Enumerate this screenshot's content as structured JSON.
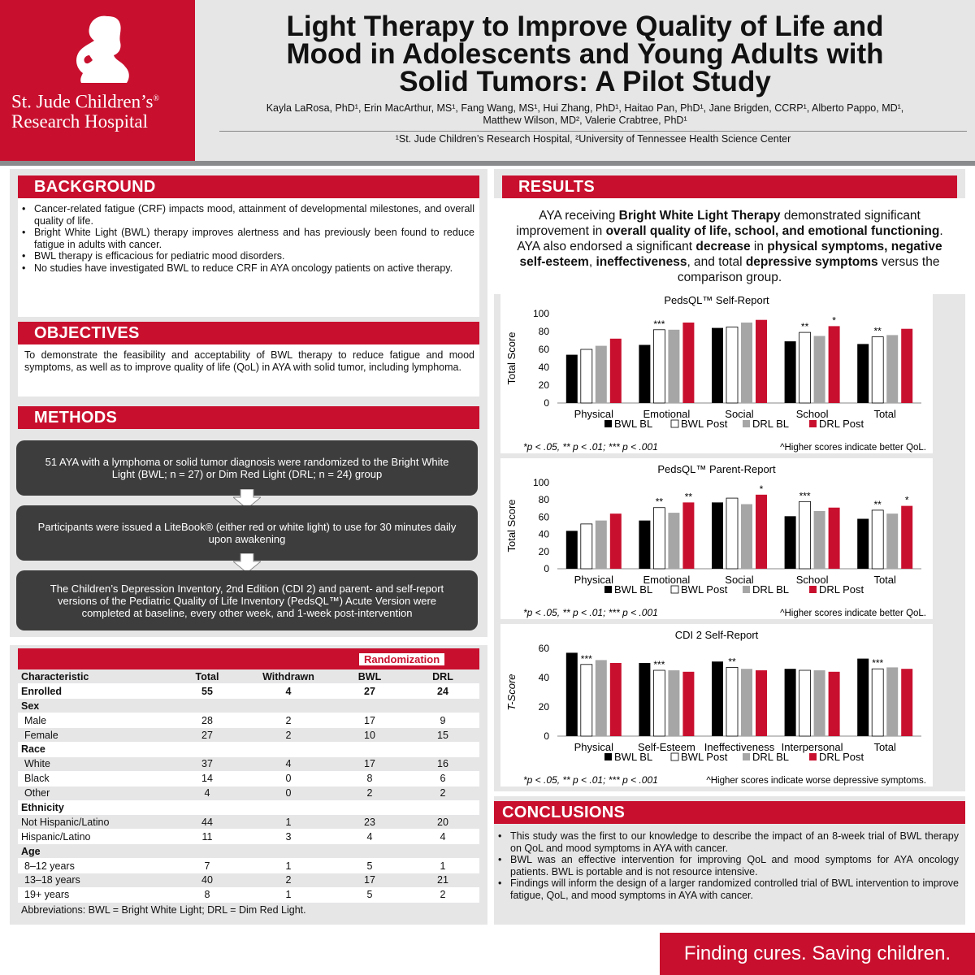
{
  "header": {
    "logo_line1": "St. Jude Children’s",
    "logo_line2": "Research Hospital",
    "logo_mark": "®",
    "title_line1": "Light Therapy to Improve Quality of Life and",
    "title_line2": "Mood in Adolescents and Young Adults with",
    "title_line3": "Solid Tumors:  A Pilot Study",
    "authors_line1": "Kayla LaRosa, PhD¹, Erin MacArthur, MS¹, Fang Wang, MS¹, Hui Zhang, PhD¹, Haitao Pan, PhD¹, Jane Brigden, CCRP¹, Alberto Pappo, MD¹,",
    "authors_line2": "Matthew Wilson, MD², Valerie Crabtree, PhD¹",
    "affiliations": "¹St. Jude Children’s Research Hospital, ²University of Tennessee Health Science Center"
  },
  "background": {
    "heading": "BACKGROUND",
    "bullets": [
      "Cancer-related fatigue (CRF) impacts mood, attainment of developmental milestones, and overall quality of life.",
      "Bright White Light (BWL) therapy improves alertness and has previously been found to reduce fatigue in adults with cancer.",
      "BWL therapy is efficacious for pediatric mood disorders.",
      "No studies have investigated BWL to reduce CRF in AYA oncology patients on active therapy."
    ]
  },
  "objectives": {
    "heading": "OBJECTIVES",
    "text": "To demonstrate the feasibility and acceptability of BWL therapy to reduce fatigue and mood symptoms, as well as to improve quality of life (QoL) in AYA with solid tumor, including lymphoma."
  },
  "methods": {
    "heading": "METHODS",
    "steps": [
      "51 AYA with a lymphoma or solid tumor diagnosis were randomized to the Bright White Light (BWL; n = 27) or Dim Red Light (DRL; n = 24) group",
      "Participants were issued a LiteBook® (either red or white light) to use for 30 minutes daily upon awakening",
      "The Children’s Depression Inventory, 2nd Edition (CDI 2) and parent- and self-report versions of the Pediatric Quality of Life Inventory (PedsQL™) Acute Version were completed at baseline, every other week, and 1-week post-intervention"
    ]
  },
  "demographics": {
    "group_header": "Randomization",
    "columns": [
      "Characteristic",
      "Total",
      "Withdrawn",
      "BWL",
      "DRL"
    ],
    "rows": [
      {
        "label": "Enrolled",
        "bold": true,
        "vals": [
          "55",
          "4",
          "27",
          "24"
        ]
      },
      {
        "label": "Sex",
        "bold": true,
        "vals": [
          "",
          "",
          "",
          ""
        ]
      },
      {
        "label": "Male",
        "indent": true,
        "vals": [
          "28",
          "2",
          "17",
          "9"
        ]
      },
      {
        "label": "Female",
        "indent": true,
        "vals": [
          "27",
          "2",
          "10",
          "15"
        ]
      },
      {
        "label": "Race",
        "bold": true,
        "vals": [
          "",
          "",
          "",
          ""
        ]
      },
      {
        "label": "White",
        "indent": true,
        "vals": [
          "37",
          "4",
          "17",
          "16"
        ]
      },
      {
        "label": "Black",
        "indent": true,
        "vals": [
          "14",
          "0",
          "8",
          "6"
        ]
      },
      {
        "label": "Other",
        "indent": true,
        "vals": [
          "4",
          "0",
          "2",
          "2"
        ]
      },
      {
        "label": "Ethnicity",
        "bold": true,
        "vals": [
          "",
          "",
          "",
          ""
        ]
      },
      {
        "label": "Not Hispanic/Latino",
        "vals": [
          "44",
          "1",
          "23",
          "20"
        ]
      },
      {
        "label": "Hispanic/Latino",
        "vals": [
          "11",
          "3",
          "4",
          "4"
        ]
      },
      {
        "label": "Age",
        "bold": true,
        "vals": [
          "",
          "",
          "",
          ""
        ]
      },
      {
        "label": "8–12 years",
        "indent": true,
        "vals": [
          "7",
          "1",
          "5",
          "1"
        ]
      },
      {
        "label": "13–18 years",
        "indent": true,
        "vals": [
          "40",
          "2",
          "17",
          "21"
        ]
      },
      {
        "label": "19+ years",
        "indent": true,
        "vals": [
          "8",
          "1",
          "5",
          "2"
        ]
      }
    ],
    "abbreviations": "Abbreviations: BWL = Bright White Light; DRL = Dim Red Light."
  },
  "results": {
    "heading": "RESULTS",
    "summary_parts": [
      {
        "t": "AYA receiving ",
        "b": false
      },
      {
        "t": "Bright White Light Therapy",
        "b": true
      },
      {
        "t": " demonstrated significant improvement in ",
        "b": false
      },
      {
        "t": "overall quality of life, school, and emotional functioning",
        "b": true
      },
      {
        "t": ". AYA also endorsed a significant ",
        "b": false
      },
      {
        "t": "decrease",
        "b": true
      },
      {
        "t": " in ",
        "b": false
      },
      {
        "t": "physical symptoms, negative self-esteem",
        "b": true
      },
      {
        "t": ", ",
        "b": false
      },
      {
        "t": "ineffectiveness",
        "b": true
      },
      {
        "t": ", and total ",
        "b": false
      },
      {
        "t": "depressive symptoms",
        "b": true
      },
      {
        "t": " versus the comparison group.",
        "b": false
      }
    ]
  },
  "colors": {
    "bwl_bl": "#000000",
    "bwl_post": "#ffffff",
    "drl_bl": "#a6a6a6",
    "drl_post": "#c8102e",
    "brand_red": "#c8102e"
  },
  "chart_data": [
    {
      "type": "bar",
      "title": "PedsQL™ Self-Report",
      "ylabel": "Total Score",
      "ylim": [
        0,
        100
      ],
      "yticks": [
        "0",
        "20",
        "40",
        "60",
        "80",
        "100"
      ],
      "categories": [
        "Physical",
        "Emotional",
        "Social",
        "School",
        "Total"
      ],
      "series": [
        {
          "name": "BWL BL",
          "values": [
            54,
            65,
            84,
            69,
            66
          ]
        },
        {
          "name": "BWL Post",
          "values": [
            60,
            82,
            85,
            79,
            74
          ]
        },
        {
          "name": "DRL BL",
          "values": [
            64,
            82,
            90,
            75,
            76
          ]
        },
        {
          "name": "DRL Post",
          "values": [
            72,
            90,
            93,
            86,
            83
          ]
        }
      ],
      "annotations": [
        {
          "category": "Emotional",
          "series": "BWL Post",
          "text": "***"
        },
        {
          "category": "School",
          "series": "BWL Post",
          "text": "**"
        },
        {
          "category": "School",
          "series": "DRL Post",
          "text": "*"
        },
        {
          "category": "Total",
          "series": "BWL Post",
          "text": "**"
        }
      ],
      "footnote_left": "*p < .05, ** p < .01; *** p < .001",
      "footnote_right": "^Higher scores indicate better QoL."
    },
    {
      "type": "bar",
      "title": "PedsQL™ Parent-Report",
      "ylabel": "Total Score",
      "ylim": [
        0,
        100
      ],
      "yticks": [
        "0",
        "20",
        "40",
        "60",
        "80",
        "100"
      ],
      "categories": [
        "Physical",
        "Emotional",
        "Social",
        "School",
        "Total"
      ],
      "series": [
        {
          "name": "BWL BL",
          "values": [
            44,
            56,
            77,
            61,
            58
          ]
        },
        {
          "name": "BWL Post",
          "values": [
            52,
            71,
            82,
            78,
            68
          ]
        },
        {
          "name": "DRL BL",
          "values": [
            56,
            65,
            75,
            67,
            64
          ]
        },
        {
          "name": "DRL Post",
          "values": [
            64,
            77,
            86,
            71,
            73
          ]
        }
      ],
      "annotations": [
        {
          "category": "Emotional",
          "series": "BWL Post",
          "text": "**"
        },
        {
          "category": "Emotional",
          "series": "DRL Post",
          "text": "**"
        },
        {
          "category": "Social",
          "series": "DRL Post",
          "text": "*"
        },
        {
          "category": "School",
          "series": "BWL Post",
          "text": "***"
        },
        {
          "category": "Total",
          "series": "BWL Post",
          "text": "**"
        },
        {
          "category": "Total",
          "series": "DRL Post",
          "text": "*"
        }
      ],
      "footnote_left": "*p < .05, ** p < .01; *** p < .001",
      "footnote_right": "^Higher scores indicate better QoL."
    },
    {
      "type": "bar",
      "title": "CDI 2 Self-Report",
      "ylabel": "T-Score",
      "ylim": [
        0,
        60
      ],
      "yticks": [
        "0",
        "20",
        "40",
        "60"
      ],
      "categories": [
        "Physical",
        "Self-Esteem",
        "Ineffectiveness",
        "Interpersonal",
        "Total"
      ],
      "series": [
        {
          "name": "BWL BL",
          "values": [
            57,
            50,
            51,
            46,
            53
          ]
        },
        {
          "name": "BWL Post",
          "values": [
            49,
            45,
            47,
            45,
            46
          ]
        },
        {
          "name": "DRL BL",
          "values": [
            52,
            45,
            46,
            45,
            47
          ]
        },
        {
          "name": "DRL Post",
          "values": [
            50,
            44,
            45,
            44,
            46
          ]
        }
      ],
      "annotations": [
        {
          "category": "Physical",
          "series": "BWL Post",
          "text": "***"
        },
        {
          "category": "Self-Esteem",
          "series": "BWL Post",
          "text": "***"
        },
        {
          "category": "Ineffectiveness",
          "series": "BWL Post",
          "text": "**"
        },
        {
          "category": "Total",
          "series": "BWL Post",
          "text": "***"
        }
      ],
      "footnote_left": "*p < .05, ** p < .01; *** p < .001",
      "footnote_right": "^Higher scores indicate worse depressive symptoms."
    }
  ],
  "conclusions": {
    "heading": "CONCLUSIONS",
    "bullets": [
      "This study was the first to our knowledge to describe the impact of an 8-week trial of BWL therapy on QoL and mood symptoms in AYA with cancer.",
      "BWL was an effective intervention for improving QoL and mood symptoms for AYA oncology patients. BWL is portable and is not resource intensive.",
      "Findings will inform the design of a larger randomized controlled trial of BWL intervention to improve fatigue, QoL, and mood symptoms in AYA with cancer."
    ]
  },
  "footer": {
    "tagline": "Finding cures. Saving children."
  }
}
